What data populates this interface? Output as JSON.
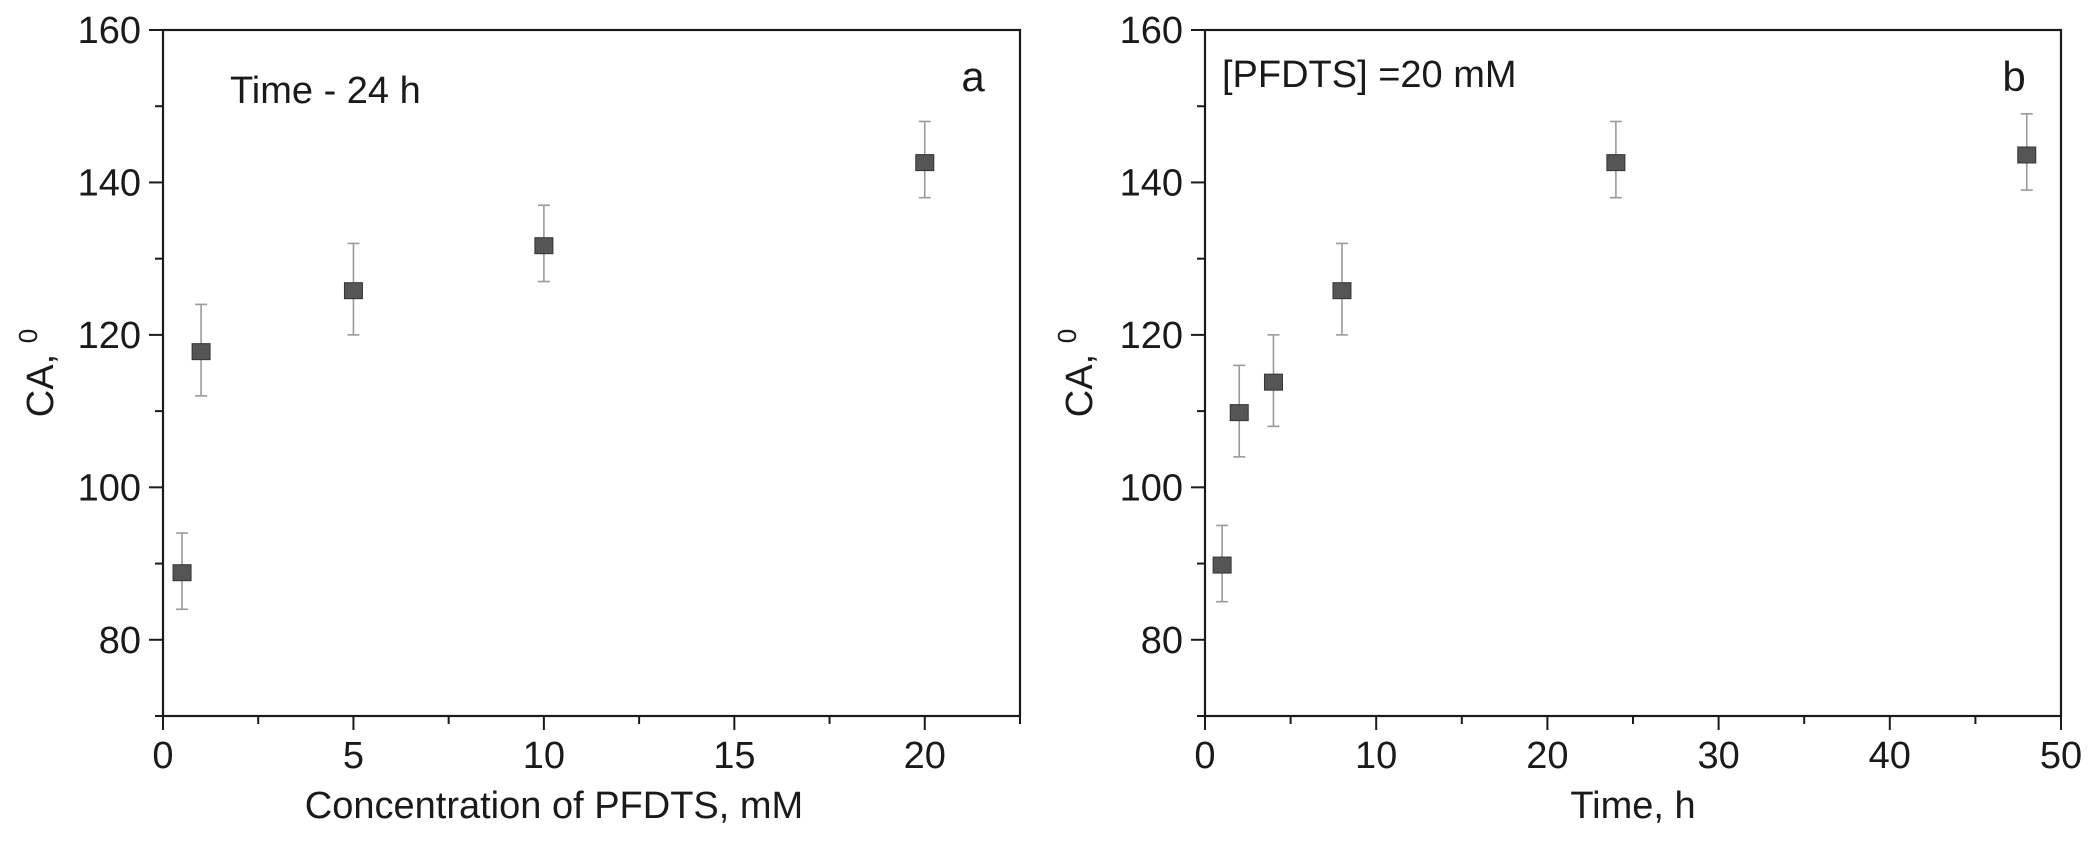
{
  "chart_data": [
    {
      "type": "scatter",
      "panel_letter": "a",
      "annotation": "Time - 24 h",
      "xlabel": "Concentration of PFDTS, mM",
      "ylabel": "CA, ",
      "ylabel_sup": "0",
      "xlim": [
        0,
        22.5
      ],
      "ylim": [
        70,
        160
      ],
      "x_ticks": [
        0,
        5,
        10,
        15,
        20
      ],
      "x_minor_ticks": [
        2.5,
        7.5,
        12.5,
        17.5,
        22.5
      ],
      "y_ticks": [
        80,
        100,
        120,
        140,
        160
      ],
      "y_minor_ticks": [
        70,
        90,
        110,
        130,
        150
      ],
      "x_tick_labels": [
        "0",
        "5",
        "10",
        "15",
        "20"
      ],
      "y_tick_labels": [
        "80",
        "100",
        "120",
        "140",
        "160"
      ],
      "grid": false,
      "series": [
        {
          "marker": "square",
          "color": "#555555",
          "points": [
            {
              "x": 0.5,
              "y": 88.8,
              "err_low": 84,
              "err_high": 94
            },
            {
              "x": 1,
              "y": 117.8,
              "err_low": 112,
              "err_high": 124
            },
            {
              "x": 5,
              "y": 125.8,
              "err_low": 120,
              "err_high": 132
            },
            {
              "x": 10,
              "y": 131.7,
              "err_low": 127,
              "err_high": 137
            },
            {
              "x": 20,
              "y": 142.6,
              "err_low": 138,
              "err_high": 148
            }
          ]
        }
      ]
    },
    {
      "type": "scatter",
      "panel_letter": "b",
      "annotation": "[PFDTS] =20 mM",
      "xlabel": "Time, h",
      "ylabel": "CA, ",
      "ylabel_sup": "0",
      "xlim": [
        0,
        50
      ],
      "ylim": [
        70,
        160
      ],
      "x_ticks": [
        0,
        10,
        20,
        30,
        40,
        50
      ],
      "x_minor_ticks": [
        5,
        15,
        25,
        35,
        45
      ],
      "y_ticks": [
        80,
        100,
        120,
        140,
        160
      ],
      "y_minor_ticks": [
        70,
        90,
        110,
        130,
        150
      ],
      "x_tick_labels": [
        "0",
        "10",
        "20",
        "30",
        "40",
        "50"
      ],
      "y_tick_labels": [
        "80",
        "100",
        "120",
        "140",
        "160"
      ],
      "grid": false,
      "series": [
        {
          "marker": "square",
          "color": "#555555",
          "points": [
            {
              "x": 1,
              "y": 89.8,
              "err_low": 85,
              "err_high": 95
            },
            {
              "x": 2,
              "y": 109.8,
              "err_low": 104,
              "err_high": 116
            },
            {
              "x": 4,
              "y": 113.8,
              "err_low": 108,
              "err_high": 120
            },
            {
              "x": 8,
              "y": 125.8,
              "err_low": 120,
              "err_high": 132
            },
            {
              "x": 24,
              "y": 142.6,
              "err_low": 138,
              "err_high": 148
            },
            {
              "x": 48,
              "y": 143.6,
              "err_low": 139,
              "err_high": 149
            }
          ]
        }
      ]
    }
  ]
}
